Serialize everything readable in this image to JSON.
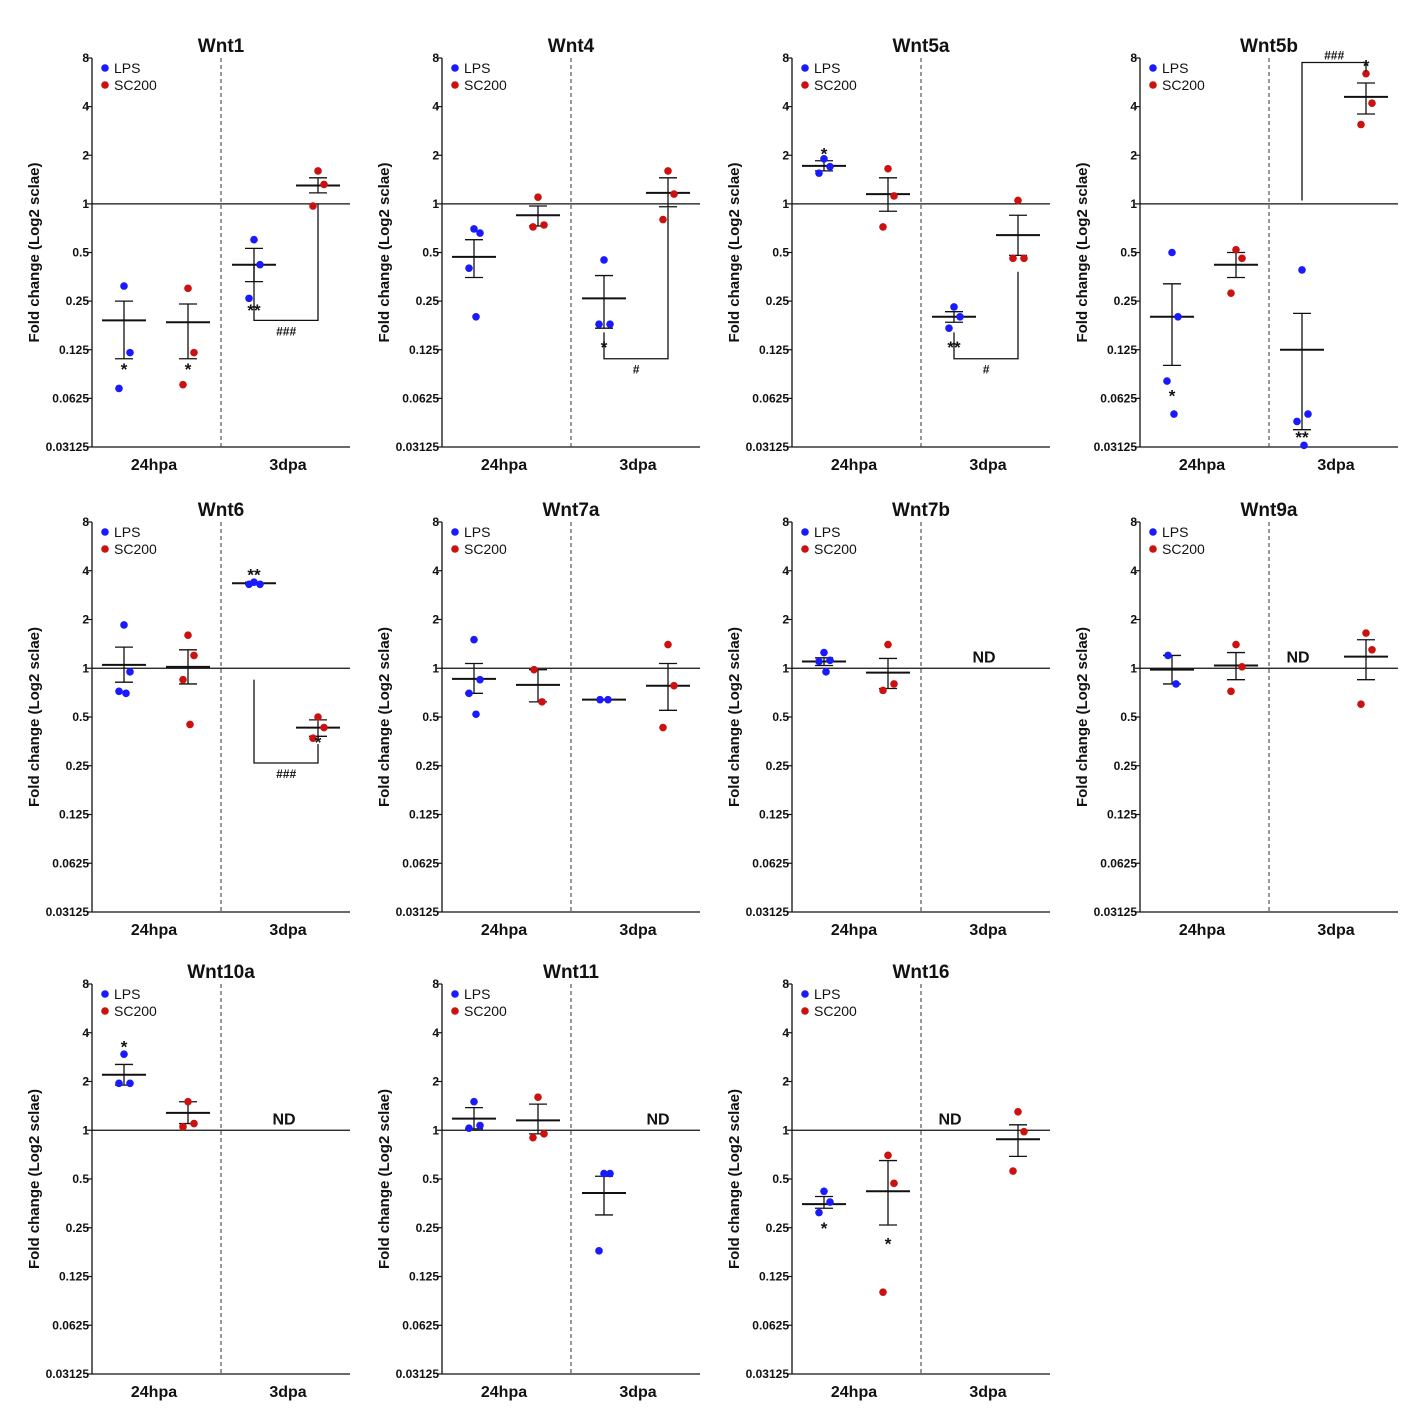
{
  "legend": [
    {
      "label": "LPS",
      "color": "#1a1aff"
    },
    {
      "label": "SC200",
      "color": "#cc1111"
    }
  ],
  "y_axis_label": "Fold change (Log2 sclae)",
  "y_ticks": [
    "8",
    "4",
    "2",
    "1",
    "0.5",
    "0.25",
    "0.125",
    "0.0625",
    "0.03125"
  ],
  "groups": [
    "24hpa",
    "3dpa"
  ],
  "chart_data": [
    {
      "type": "scatter",
      "title": "Wnt1",
      "ylabel": "Fold change (Log2 sclae)",
      "yscale": "log2",
      "ylim": [
        0.03125,
        8
      ],
      "categories": [
        "24hpa",
        "3dpa"
      ],
      "nd": null,
      "series": [
        {
          "name": "LPS",
          "group": 0,
          "points": [
            0.31,
            0.12,
            0.072
          ],
          "mean": 0.19,
          "sem": [
            0.11,
            0.25
          ],
          "star": "*",
          "star_y": 0.095
        },
        {
          "name": "SC200",
          "group": 0,
          "points": [
            0.3,
            0.12,
            0.076
          ],
          "mean": 0.185,
          "sem": [
            0.11,
            0.24
          ],
          "star": "*",
          "star_y": 0.095
        },
        {
          "name": "LPS",
          "group": 1,
          "points": [
            0.6,
            0.42,
            0.26
          ],
          "mean": 0.42,
          "sem": [
            0.33,
            0.53
          ],
          "star": "**",
          "star_y": 0.22
        },
        {
          "name": "SC200",
          "group": 1,
          "points": [
            1.6,
            1.32,
            0.97
          ],
          "mean": 1.3,
          "sem": [
            1.17,
            1.45
          ],
          "star": null,
          "star_y": null
        }
      ],
      "bracket": {
        "label": "###",
        "top_left": 0.42,
        "top_right": 1.0,
        "bottom": 0.19
      }
    },
    {
      "type": "scatter",
      "title": "Wnt4",
      "ylabel": "Fold change (Log2 sclae)",
      "yscale": "log2",
      "ylim": [
        0.03125,
        8
      ],
      "categories": [
        "24hpa",
        "3dpa"
      ],
      "nd": null,
      "series": [
        {
          "name": "LPS",
          "group": 0,
          "points": [
            0.7,
            0.66,
            0.4,
            0.2
          ],
          "mean": 0.47,
          "sem": [
            0.35,
            0.6
          ],
          "star": null,
          "star_y": null
        },
        {
          "name": "SC200",
          "group": 0,
          "points": [
            1.1,
            0.74,
            0.72
          ],
          "mean": 0.85,
          "sem": [
            0.73,
            0.97
          ],
          "star": null,
          "star_y": null
        },
        {
          "name": "LPS",
          "group": 1,
          "points": [
            0.45,
            0.18,
            0.18
          ],
          "mean": 0.26,
          "sem": [
            0.17,
            0.36
          ],
          "star": "*",
          "star_y": 0.13
        },
        {
          "name": "SC200",
          "group": 1,
          "points": [
            1.6,
            1.15,
            0.8
          ],
          "mean": 1.17,
          "sem": [
            0.96,
            1.45
          ],
          "star": null,
          "star_y": null
        }
      ],
      "bracket": {
        "label": "#",
        "top_left": 0.16,
        "top_right": 0.95,
        "bottom": 0.11
      }
    },
    {
      "type": "scatter",
      "title": "Wnt5a",
      "ylabel": "Fold change (Log2 sclae)",
      "yscale": "log2",
      "ylim": [
        0.03125,
        8
      ],
      "categories": [
        "24hpa",
        "3dpa"
      ],
      "nd": null,
      "series": [
        {
          "name": "LPS",
          "group": 0,
          "points": [
            1.9,
            1.7,
            1.55
          ],
          "mean": 1.72,
          "sem": [
            1.6,
            1.85
          ],
          "star": "*",
          "star_y": 2.05
        },
        {
          "name": "SC200",
          "group": 0,
          "points": [
            1.65,
            1.12,
            0.72
          ],
          "mean": 1.15,
          "sem": [
            0.9,
            1.45
          ],
          "star": null,
          "star_y": null
        },
        {
          "name": "LPS",
          "group": 1,
          "points": [
            0.23,
            0.2,
            0.17
          ],
          "mean": 0.2,
          "sem": [
            0.185,
            0.215
          ],
          "star": "**",
          "star_y": 0.13
        },
        {
          "name": "SC200",
          "group": 1,
          "points": [
            1.05,
            0.46,
            0.46
          ],
          "mean": 0.64,
          "sem": [
            0.48,
            0.85
          ],
          "star": null,
          "star_y": null
        }
      ],
      "bracket": {
        "label": "#",
        "top_left": 0.16,
        "top_right": 0.38,
        "bottom": 0.11
      }
    },
    {
      "type": "scatter",
      "title": "Wnt5b",
      "ylabel": "Fold change (Log2 sclae)",
      "yscale": "log2",
      "ylim": [
        0.03125,
        8
      ],
      "categories": [
        "24hpa",
        "3dpa"
      ],
      "nd": null,
      "series": [
        {
          "name": "LPS",
          "group": 0,
          "points": [
            0.5,
            0.2,
            0.08,
            0.05
          ],
          "mean": 0.2,
          "sem": [
            0.1,
            0.32
          ],
          "star": "*",
          "star_y": 0.065
        },
        {
          "name": "SC200",
          "group": 0,
          "points": [
            0.52,
            0.46,
            0.28
          ],
          "mean": 0.42,
          "sem": [
            0.35,
            0.5
          ],
          "star": null,
          "star_y": null
        },
        {
          "name": "LPS",
          "group": 1,
          "points": [
            0.39,
            0.05,
            0.045,
            0.032
          ],
          "mean": 0.125,
          "sem": [
            0.04,
            0.21
          ],
          "star": "**",
          "star_y": 0.036
        },
        {
          "name": "SC200",
          "group": 1,
          "points": [
            6.4,
            4.2,
            3.1
          ],
          "mean": 4.6,
          "sem": [
            3.6,
            5.6
          ],
          "star": "*",
          "star_y": 7.2
        }
      ],
      "bracket": {
        "label": "###",
        "top_left": 1.05,
        "top_right": 6.6,
        "top": 7.5
      }
    },
    {
      "type": "scatter",
      "title": "Wnt6",
      "ylabel": "Fold change (Log2 sclae)",
      "yscale": "log2",
      "ylim": [
        0.03125,
        8
      ],
      "categories": [
        "24hpa",
        "3dpa"
      ],
      "nd": null,
      "series": [
        {
          "name": "LPS",
          "group": 0,
          "points": [
            1.85,
            0.95,
            0.72,
            0.7
          ],
          "mean": 1.05,
          "sem": [
            0.82,
            1.35
          ],
          "star": null,
          "star_y": null
        },
        {
          "name": "SC200",
          "group": 0,
          "points": [
            1.6,
            1.2,
            0.85,
            0.45
          ],
          "mean": 1.02,
          "sem": [
            0.8,
            1.3
          ],
          "star": null,
          "star_y": null
        },
        {
          "name": "LPS",
          "group": 1,
          "points": [
            3.4,
            3.3,
            3.3
          ],
          "mean": 3.35,
          "sem": [
            3.3,
            3.4
          ],
          "star": "**",
          "star_y": 3.8
        },
        {
          "name": "SC200",
          "group": 1,
          "points": [
            0.5,
            0.43,
            0.37
          ],
          "mean": 0.43,
          "sem": [
            0.38,
            0.48
          ],
          "star": "*",
          "star_y": 0.35
        }
      ],
      "bracket": {
        "label": "###",
        "top_left": 0.85,
        "top_right": 0.34,
        "bottom": 0.26
      }
    },
    {
      "type": "scatter",
      "title": "Wnt7a",
      "ylabel": "Fold change (Log2 sclae)",
      "yscale": "log2",
      "ylim": [
        0.03125,
        8
      ],
      "categories": [
        "24hpa",
        "3dpa"
      ],
      "nd": null,
      "series": [
        {
          "name": "LPS",
          "group": 0,
          "points": [
            1.5,
            0.85,
            0.7,
            0.52
          ],
          "mean": 0.86,
          "sem": [
            0.7,
            1.07
          ],
          "star": null,
          "star_y": null
        },
        {
          "name": "SC200",
          "group": 0,
          "points": [
            0.98,
            0.62
          ],
          "mean": 0.79,
          "sem": [
            0.62,
            0.98
          ],
          "star": null,
          "star_y": null
        },
        {
          "name": "LPS",
          "group": 1,
          "points": [
            0.64,
            0.64
          ],
          "mean": 0.64,
          "sem": [
            0.64,
            0.64
          ],
          "star": null,
          "star_y": null
        },
        {
          "name": "SC200",
          "group": 1,
          "points": [
            1.4,
            0.78,
            0.43
          ],
          "mean": 0.78,
          "sem": [
            0.55,
            1.07
          ],
          "star": null,
          "star_y": null
        }
      ],
      "bracket": null
    },
    {
      "type": "scatter",
      "title": "Wnt7b",
      "ylabel": "Fold change (Log2 sclae)",
      "yscale": "log2",
      "ylim": [
        0.03125,
        8
      ],
      "categories": [
        "24hpa",
        "3dpa"
      ],
      "nd": "ND",
      "series": [
        {
          "name": "LPS",
          "group": 0,
          "points": [
            1.25,
            1.12,
            1.1,
            0.95
          ],
          "mean": 1.1,
          "sem": [
            1.04,
            1.16
          ],
          "star": null,
          "star_y": null
        },
        {
          "name": "SC200",
          "group": 0,
          "points": [
            1.4,
            0.8,
            0.73
          ],
          "mean": 0.94,
          "sem": [
            0.75,
            1.15
          ],
          "star": null,
          "star_y": null
        }
      ],
      "bracket": null
    },
    {
      "type": "scatter",
      "title": "Wnt9a",
      "ylabel": "Fold change (Log2 sclae)",
      "yscale": "log2",
      "ylim": [
        0.03125,
        8
      ],
      "categories": [
        "24hpa",
        "3dpa"
      ],
      "nd": "ND",
      "series": [
        {
          "name": "LPS",
          "group": 0,
          "points": [
            1.2,
            0.8
          ],
          "mean": 0.98,
          "sem": [
            0.8,
            1.2
          ],
          "star": null,
          "star_y": null
        },
        {
          "name": "SC200",
          "group": 0,
          "points": [
            1.4,
            1.02,
            0.72
          ],
          "mean": 1.04,
          "sem": [
            0.85,
            1.25
          ],
          "star": null,
          "star_y": null
        },
        {
          "name": "SC200",
          "group": 1,
          "points": [
            1.65,
            1.3,
            0.6
          ],
          "mean": 1.18,
          "sem": [
            0.85,
            1.5
          ],
          "star": null,
          "star_y": null
        }
      ],
      "bracket": null
    },
    {
      "type": "scatter",
      "title": "Wnt10a",
      "ylabel": "Fold change (Log2 sclae)",
      "yscale": "log2",
      "ylim": [
        0.03125,
        8
      ],
      "categories": [
        "24hpa",
        "3dpa"
      ],
      "nd": "ND",
      "series": [
        {
          "name": "LPS",
          "group": 0,
          "points": [
            2.95,
            1.95,
            1.95
          ],
          "mean": 2.2,
          "sem": [
            1.9,
            2.55
          ],
          "star": "*",
          "star_y": 3.3
        },
        {
          "name": "SC200",
          "group": 0,
          "points": [
            1.5,
            1.1,
            1.05
          ],
          "mean": 1.28,
          "sem": [
            1.1,
            1.5
          ],
          "star": null,
          "star_y": null
        }
      ],
      "bracket": null
    },
    {
      "type": "scatter",
      "title": "Wnt11",
      "ylabel": "Fold change (Log2 sclae)",
      "yscale": "log2",
      "ylim": [
        0.03125,
        8
      ],
      "categories": [
        "24hpa",
        "3dpa"
      ],
      "nd": "ND",
      "series": [
        {
          "name": "LPS",
          "group": 0,
          "points": [
            1.5,
            1.07,
            1.03
          ],
          "mean": 1.18,
          "sem": [
            1.02,
            1.38
          ],
          "star": null,
          "star_y": null
        },
        {
          "name": "SC200",
          "group": 0,
          "points": [
            1.6,
            0.95,
            0.9
          ],
          "mean": 1.15,
          "sem": [
            0.95,
            1.45
          ],
          "star": null,
          "star_y": null
        },
        {
          "name": "LPS",
          "group": 1,
          "points": [
            0.54,
            0.54,
            0.18
          ],
          "mean": 0.41,
          "sem": [
            0.3,
            0.52
          ],
          "star": null,
          "star_y": null
        }
      ],
      "bracket": null
    },
    {
      "type": "scatter",
      "title": "Wnt16",
      "ylabel": "Fold change (Log2 sclae)",
      "yscale": "log2",
      "ylim": [
        0.03125,
        8
      ],
      "categories": [
        "24hpa",
        "3dpa"
      ],
      "nd": "ND",
      "series": [
        {
          "name": "LPS",
          "group": 0,
          "points": [
            0.42,
            0.36,
            0.31
          ],
          "mean": 0.35,
          "sem": [
            0.33,
            0.39
          ],
          "star": "*",
          "star_y": 0.25
        },
        {
          "name": "SC200",
          "group": 0,
          "points": [
            0.7,
            0.47,
            0.1
          ],
          "mean": 0.42,
          "sem": [
            0.26,
            0.65
          ],
          "star": "*",
          "star_y": 0.2
        },
        {
          "name": "SC200",
          "group": 1,
          "points": [
            1.3,
            0.98,
            0.56
          ],
          "mean": 0.88,
          "sem": [
            0.69,
            1.08
          ],
          "star": null,
          "star_y": null
        }
      ],
      "bracket": null
    }
  ]
}
